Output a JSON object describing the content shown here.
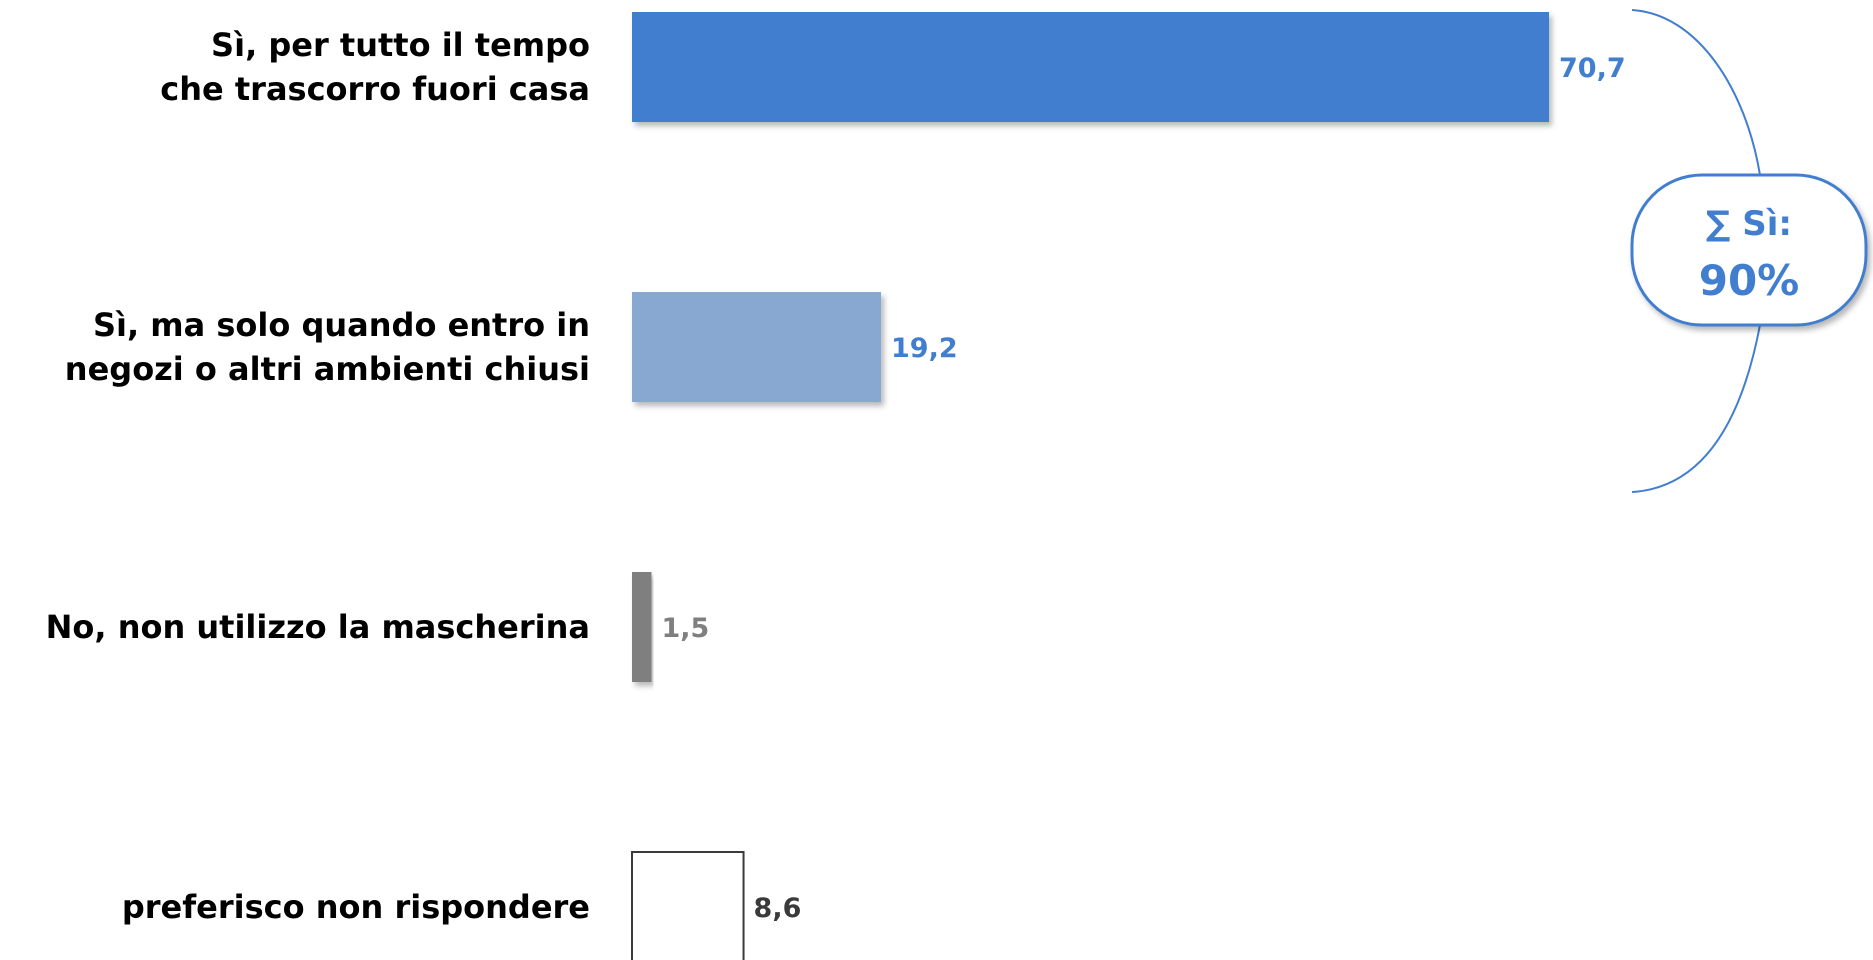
{
  "chart_data": {
    "type": "bar",
    "orientation": "horizontal",
    "title": "",
    "xlabel": "",
    "ylabel": "",
    "xlim": [
      0,
      100
    ],
    "grid": false,
    "legend": "none",
    "categories": [
      [
        "Sì, per tutto il tempo",
        "che trascorro fuori casa"
      ],
      [
        "Sì, ma solo quando entro in",
        "negozi o altri ambienti chiusi"
      ],
      [
        "No, non utilizzo la mascherina"
      ],
      [
        "preferisco non rispondere"
      ]
    ],
    "values": [
      70.7,
      19.2,
      1.5,
      8.6
    ],
    "value_labels": [
      "70,7",
      "19,2",
      "1,5",
      "8,6"
    ],
    "bar_colors": [
      "#427ECF",
      "#88A8D2",
      "#7F7F7F",
      "#FFFFFF"
    ],
    "label_colors": [
      "#427ECF",
      "#427ECF",
      "#7F7F7F",
      "#3A3A3A"
    ],
    "annotation": {
      "line1": "∑ Sì:",
      "line2": "90%",
      "color": "#427ECF"
    }
  }
}
